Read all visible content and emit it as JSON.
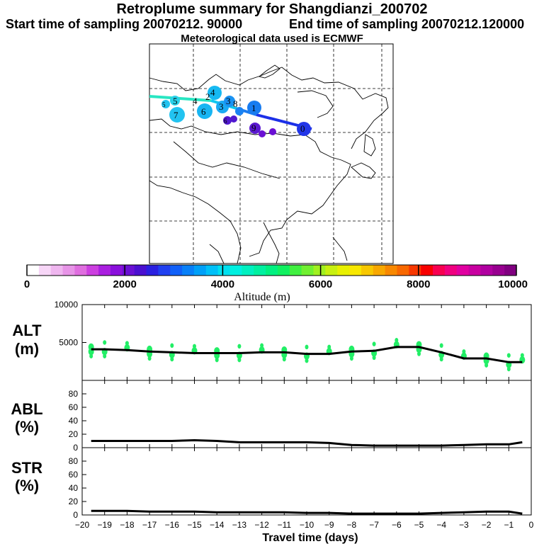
{
  "header": {
    "title": "Retroplume summary for Shangdianzi_200702",
    "start": "Start time of sampling 20070212. 90000",
    "end": "End time of sampling 20070212.120000",
    "met": "Meteorological data used is ECMWF"
  },
  "colorbar": {
    "colors": [
      "#ffffff",
      "#f7d6f7",
      "#efb6ef",
      "#e794e7",
      "#df6edf",
      "#cc3fe0",
      "#aa1fe0",
      "#8a10dc",
      "#6a10d4",
      "#4a10d0",
      "#2a20e0",
      "#2040f0",
      "#1060f8",
      "#0880f8",
      "#00a0f8",
      "#00c0f8",
      "#00e0f0",
      "#00f0e0",
      "#00f0c0",
      "#00f0a0",
      "#00f080",
      "#10f060",
      "#40f040",
      "#70f030",
      "#a0f020",
      "#c8f010",
      "#e8f000",
      "#f8e800",
      "#f8c800",
      "#f8a800",
      "#f88800",
      "#f86800",
      "#f83800",
      "#f80000",
      "#f80050",
      "#f00080",
      "#e000a0",
      "#c800a0",
      "#b000a0",
      "#980090",
      "#800080"
    ],
    "ticks": [
      "0",
      "2000",
      "4000",
      "6000",
      "8000",
      "10000"
    ],
    "label": "Altitude (m)"
  },
  "map_labels": [
    "5",
    "4",
    "4",
    "2",
    "7",
    "6",
    "3",
    "3",
    "8",
    "1",
    "0",
    "9",
    "5",
    "6"
  ],
  "chart_data": [
    {
      "type": "line",
      "panel": "ALT",
      "ylabel": "ALT",
      "yunit": "(m)",
      "ylim": [
        0,
        10000
      ],
      "yticks": [
        "10000",
        "5000"
      ],
      "x": [
        -19.6,
        -19,
        -18,
        -17,
        -16,
        -15,
        -14,
        -13,
        -12,
        -11,
        -10,
        -9,
        -8,
        -7,
        -6,
        -5,
        -4,
        -3,
        -2,
        -1,
        -0.4
      ],
      "values": [
        4100,
        4100,
        4000,
        3800,
        3700,
        3600,
        3600,
        3600,
        3700,
        3700,
        3500,
        3500,
        3800,
        3900,
        4400,
        4400,
        3700,
        2900,
        2900,
        2400,
        2400
      ]
    },
    {
      "type": "line",
      "panel": "ABL",
      "ylabel": "ABL",
      "yunit": "(%)",
      "ylim": [
        0,
        100
      ],
      "yticks": [
        "80",
        "60",
        "40",
        "20",
        "0"
      ],
      "x": [
        -19.6,
        -18,
        -17,
        -16,
        -15,
        -14,
        -13,
        -12,
        -11,
        -10,
        -9,
        -8,
        -7,
        -6,
        -5,
        -4,
        -3,
        -2,
        -1,
        -0.4
      ],
      "values": [
        10,
        10,
        10,
        10,
        11,
        10,
        8,
        8,
        8,
        8,
        7,
        4,
        3,
        3,
        3,
        3,
        4,
        5,
        5,
        8
      ]
    },
    {
      "type": "line",
      "panel": "STR",
      "ylabel": "STR",
      "yunit": "(%)",
      "ylim": [
        0,
        100
      ],
      "yticks": [
        "80",
        "60",
        "40",
        "20",
        "0"
      ],
      "x": [
        -19.6,
        -18,
        -17,
        -16,
        -15,
        -14,
        -13,
        -12,
        -11,
        -10,
        -9,
        -8,
        -7,
        -6,
        -5,
        -4,
        -3,
        -2,
        -1,
        -0.4
      ],
      "values": [
        6,
        6,
        5,
        5,
        5,
        4,
        4,
        4,
        4,
        3,
        3,
        2,
        2,
        2,
        2,
        3,
        4,
        5,
        5,
        2
      ]
    }
  ],
  "xaxis": {
    "ticks": [
      "−20",
      "−19",
      "−18",
      "−17",
      "−16",
      "−15",
      "−14",
      "−13",
      "−12",
      "−11",
      "−10",
      "−9",
      "−8",
      "−7",
      "−6",
      "−5",
      "−4",
      "−3",
      "−2",
      "−1",
      "0"
    ],
    "label": "Travel time (days)"
  }
}
